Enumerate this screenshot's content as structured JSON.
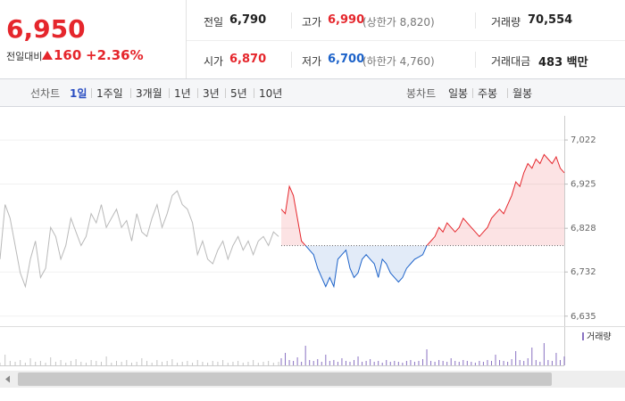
{
  "quote": {
    "price": "6,950",
    "change_label": "전일대비",
    "change": "160",
    "change_rate": "+2.36%"
  },
  "summary": [
    [
      {
        "label": "전일",
        "value": "6,790"
      },
      {
        "label": "고가",
        "value": "6,990",
        "limit": "(상한가 8,820)"
      },
      {
        "label": "거래량",
        "value": "70,554"
      }
    ],
    [
      {
        "label": "시가",
        "value": "6,870"
      },
      {
        "label": "저가",
        "value": "6,700",
        "limit": "(하한가 4,760)"
      },
      {
        "label": "거래대금",
        "value": "483 백만"
      }
    ]
  ],
  "toolbar": {
    "line_label": "선차트",
    "line_periods": [
      "1일",
      "1주일",
      "3개월",
      "1년",
      "3년",
      "5년",
      "10년"
    ],
    "candle_label": "봉차트",
    "candle_periods": [
      "일봉",
      "주봉",
      "월봉"
    ]
  },
  "chart_data": {
    "type": "line",
    "ylim": [
      6615,
      7075
    ],
    "yticks": [
      {
        "value": 6635,
        "label": "6,635"
      },
      {
        "value": 6732,
        "label": "6,732"
      },
      {
        "value": 6828,
        "label": "6,828"
      },
      {
        "value": 6925,
        "label": "6,925"
      },
      {
        "value": 7022,
        "label": "7,022"
      }
    ],
    "baseline": 6790,
    "up_color": "#e5262c",
    "down_color": "#1c62c9",
    "series": [
      {
        "color": "#b9b9b9",
        "values": [
          6760,
          6880,
          6850,
          6790,
          6730,
          6700,
          6760,
          6800,
          6720,
          6740,
          6830,
          6810,
          6760,
          6790,
          6850,
          6820,
          6790,
          6810,
          6860,
          6840,
          6880,
          6830,
          6850,
          6870,
          6830,
          6845,
          6800,
          6860,
          6820,
          6810,
          6850,
          6880,
          6830,
          6860,
          6900,
          6910,
          6880,
          6870,
          6840,
          6770,
          6800,
          6760,
          6750,
          6780,
          6800,
          6760,
          6790,
          6810,
          6780,
          6800,
          6770,
          6800,
          6810,
          6790,
          6820,
          6810
        ]
      },
      {
        "color": "#e5262c",
        "values": [
          6870,
          6860,
          6920,
          6900,
          6850,
          6800,
          6790,
          6780,
          6770,
          6740,
          6720,
          6700,
          6720,
          6700,
          6760,
          6770,
          6780,
          6740,
          6720,
          6730,
          6760,
          6770,
          6760,
          6750,
          6720,
          6760,
          6750,
          6730,
          6720,
          6710,
          6720,
          6740,
          6750,
          6760,
          6765,
          6770,
          6790,
          6800,
          6810,
          6830,
          6820,
          6840,
          6830,
          6820,
          6830,
          6850,
          6840,
          6830,
          6820,
          6810,
          6820,
          6830,
          6850,
          6860,
          6870,
          6860,
          6880,
          6900,
          6930,
          6920,
          6950,
          6970,
          6960,
          6980,
          6970,
          6990,
          6980,
          6970,
          6985,
          6960,
          6950
        ]
      }
    ],
    "volume": {
      "name": "거래량",
      "ylim": [
        0,
        40
      ],
      "series": [
        {
          "color": "#c4c4c4",
          "values": [
            3,
            12,
            5,
            4,
            6,
            3,
            8,
            4,
            5,
            3,
            9,
            4,
            6,
            3,
            5,
            7,
            4,
            3,
            6,
            5,
            4,
            10,
            3,
            5,
            4,
            6,
            3,
            4,
            8,
            5,
            3,
            6,
            4,
            5,
            7,
            3,
            4,
            5,
            3,
            6,
            4,
            3,
            5,
            4,
            6,
            3,
            4,
            5,
            3,
            4,
            6,
            3,
            4,
            5,
            3,
            4
          ]
        },
        {
          "color": "#8a72c2",
          "values": [
            8,
            14,
            6,
            5,
            9,
            4,
            22,
            6,
            5,
            7,
            4,
            12,
            5,
            6,
            4,
            8,
            5,
            4,
            6,
            10,
            4,
            5,
            7,
            4,
            5,
            3,
            6,
            4,
            5,
            4,
            3,
            5,
            6,
            4,
            5,
            7,
            18,
            5,
            4,
            6,
            5,
            4,
            8,
            5,
            4,
            6,
            5,
            4,
            3,
            5,
            4,
            6,
            5,
            12,
            6,
            5,
            4,
            7,
            16,
            6,
            5,
            8,
            20,
            6,
            4,
            25,
            6,
            5,
            14,
            6,
            10
          ]
        }
      ]
    }
  }
}
